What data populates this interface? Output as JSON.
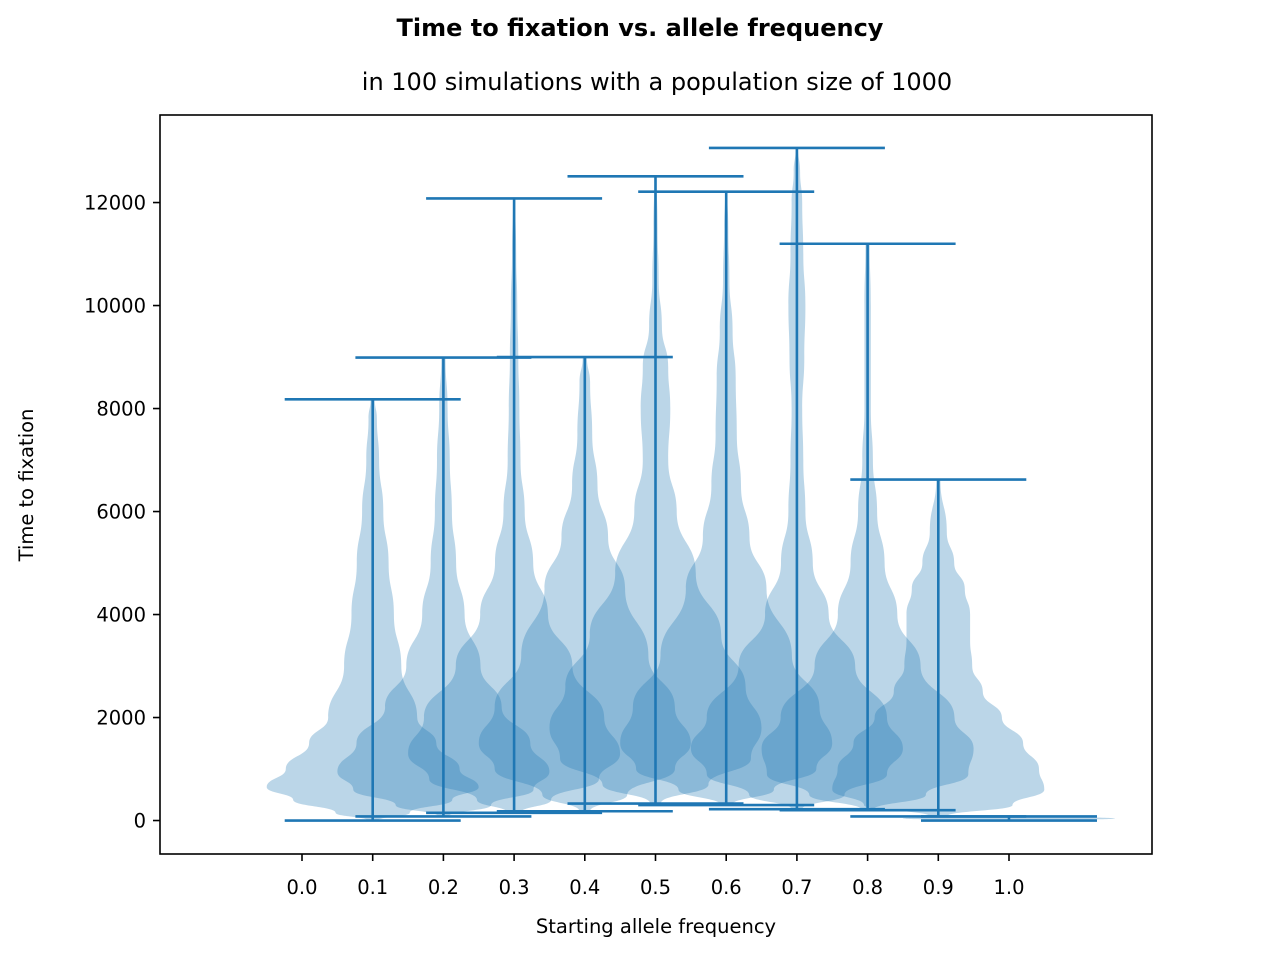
{
  "chart_data": {
    "type": "violin",
    "title": "Time to fixation vs. allele frequency",
    "subtitle": "in 100 simulations with a population size of 1000",
    "xlabel": "Starting allele frequency",
    "ylabel": "Time to fixation",
    "xtick_labels": [
      "0.0",
      "0.1",
      "0.2",
      "0.3",
      "0.4",
      "0.5",
      "0.6",
      "0.7",
      "0.8",
      "0.9",
      "1.0"
    ],
    "ytick_values": [
      0,
      2000,
      4000,
      6000,
      8000,
      10000,
      12000
    ],
    "ylim": [
      -650,
      13700
    ],
    "grid": false,
    "color": "#1f77b4",
    "violins": [
      {
        "position": 0.1,
        "min": 0,
        "max": 8180,
        "profile": [
          [
            0,
            0.05
          ],
          [
            150,
            0.35
          ],
          [
            400,
            0.75
          ],
          [
            650,
            1.0
          ],
          [
            1000,
            0.82
          ],
          [
            1500,
            0.6
          ],
          [
            2000,
            0.42
          ],
          [
            3000,
            0.27
          ],
          [
            4000,
            0.2
          ],
          [
            5000,
            0.15
          ],
          [
            6000,
            0.1
          ],
          [
            7000,
            0.06
          ],
          [
            7800,
            0.04
          ],
          [
            8180,
            0.02
          ]
        ]
      },
      {
        "position": 0.2,
        "min": 80,
        "max": 8990,
        "profile": [
          [
            80,
            0.05
          ],
          [
            300,
            0.45
          ],
          [
            600,
            0.85
          ],
          [
            950,
            1.0
          ],
          [
            1500,
            0.82
          ],
          [
            2200,
            0.55
          ],
          [
            3000,
            0.35
          ],
          [
            4000,
            0.2
          ],
          [
            5000,
            0.12
          ],
          [
            6000,
            0.08
          ],
          [
            7000,
            0.06
          ],
          [
            8000,
            0.04
          ],
          [
            8990,
            0.02
          ]
        ]
      },
      {
        "position": 0.3,
        "min": 150,
        "max": 12080,
        "profile": [
          [
            150,
            0.06
          ],
          [
            400,
            0.35
          ],
          [
            800,
            0.8
          ],
          [
            1300,
            1.0
          ],
          [
            2000,
            0.85
          ],
          [
            3000,
            0.55
          ],
          [
            4000,
            0.32
          ],
          [
            5000,
            0.18
          ],
          [
            6000,
            0.1
          ],
          [
            7000,
            0.06
          ],
          [
            8000,
            0.05
          ],
          [
            9000,
            0.04
          ],
          [
            10000,
            0.03
          ],
          [
            11000,
            0.02
          ],
          [
            12080,
            0.01
          ]
        ]
      },
      {
        "position": 0.4,
        "min": 180,
        "max": 9000,
        "profile": [
          [
            180,
            0.05
          ],
          [
            500,
            0.4
          ],
          [
            1000,
            0.85
          ],
          [
            1500,
            1.0
          ],
          [
            2200,
            0.85
          ],
          [
            3200,
            0.6
          ],
          [
            4500,
            0.38
          ],
          [
            5500,
            0.22
          ],
          [
            6500,
            0.12
          ],
          [
            7500,
            0.07
          ],
          [
            8500,
            0.05
          ],
          [
            9000,
            0.02
          ]
        ]
      },
      {
        "position": 0.5,
        "min": 330,
        "max": 12510,
        "profile": [
          [
            330,
            0.05
          ],
          [
            700,
            0.5
          ],
          [
            1200,
            0.9
          ],
          [
            1800,
            1.0
          ],
          [
            2600,
            0.85
          ],
          [
            3600,
            0.62
          ],
          [
            4800,
            0.38
          ],
          [
            6000,
            0.2
          ],
          [
            7000,
            0.12
          ],
          [
            8000,
            0.14
          ],
          [
            8800,
            0.12
          ],
          [
            9600,
            0.06
          ],
          [
            10500,
            0.03
          ],
          [
            11500,
            0.02
          ],
          [
            12510,
            0.01
          ]
        ]
      },
      {
        "position": 0.6,
        "min": 300,
        "max": 12210,
        "profile": [
          [
            300,
            0.05
          ],
          [
            600,
            0.45
          ],
          [
            1000,
            0.85
          ],
          [
            1500,
            1.0
          ],
          [
            2200,
            0.88
          ],
          [
            3200,
            0.62
          ],
          [
            4500,
            0.38
          ],
          [
            5500,
            0.22
          ],
          [
            6500,
            0.14
          ],
          [
            7500,
            0.1
          ],
          [
            8600,
            0.09
          ],
          [
            9500,
            0.06
          ],
          [
            10500,
            0.03
          ],
          [
            11500,
            0.02
          ],
          [
            12210,
            0.01
          ]
        ]
      },
      {
        "position": 0.7,
        "min": 220,
        "max": 13060,
        "profile": [
          [
            220,
            0.05
          ],
          [
            500,
            0.45
          ],
          [
            900,
            0.85
          ],
          [
            1400,
            1.0
          ],
          [
            2000,
            0.85
          ],
          [
            3000,
            0.55
          ],
          [
            4000,
            0.3
          ],
          [
            5000,
            0.15
          ],
          [
            6000,
            0.08
          ],
          [
            7000,
            0.06
          ],
          [
            8000,
            0.05
          ],
          [
            9000,
            0.07
          ],
          [
            10000,
            0.08
          ],
          [
            11000,
            0.06
          ],
          [
            12000,
            0.05
          ],
          [
            12600,
            0.03
          ],
          [
            13060,
            0.01
          ]
        ]
      },
      {
        "position": 0.8,
        "min": 200,
        "max": 11200,
        "profile": [
          [
            200,
            0.05
          ],
          [
            500,
            0.55
          ],
          [
            900,
            0.95
          ],
          [
            1400,
            1.0
          ],
          [
            2000,
            0.82
          ],
          [
            3000,
            0.5
          ],
          [
            4000,
            0.28
          ],
          [
            5000,
            0.16
          ],
          [
            6000,
            0.09
          ],
          [
            7000,
            0.05
          ],
          [
            8000,
            0.03
          ],
          [
            9000,
            0.03
          ],
          [
            10000,
            0.03
          ],
          [
            11200,
            0.02
          ]
        ]
      },
      {
        "position": 0.9,
        "min": 80,
        "max": 6620,
        "profile": [
          [
            80,
            0.08
          ],
          [
            300,
            0.7
          ],
          [
            600,
            1.0
          ],
          [
            1000,
            0.95
          ],
          [
            1500,
            0.8
          ],
          [
            2000,
            0.6
          ],
          [
            2500,
            0.42
          ],
          [
            3000,
            0.32
          ],
          [
            3500,
            0.3
          ],
          [
            4000,
            0.3
          ],
          [
            4500,
            0.25
          ],
          [
            5000,
            0.15
          ],
          [
            5600,
            0.08
          ],
          [
            6620,
            0.02
          ]
        ]
      },
      {
        "position": 1.0,
        "min": 0,
        "max": 80,
        "profile": [
          [
            0,
            0.5
          ],
          [
            40,
            1.0
          ],
          [
            80,
            0.5
          ]
        ]
      }
    ]
  }
}
